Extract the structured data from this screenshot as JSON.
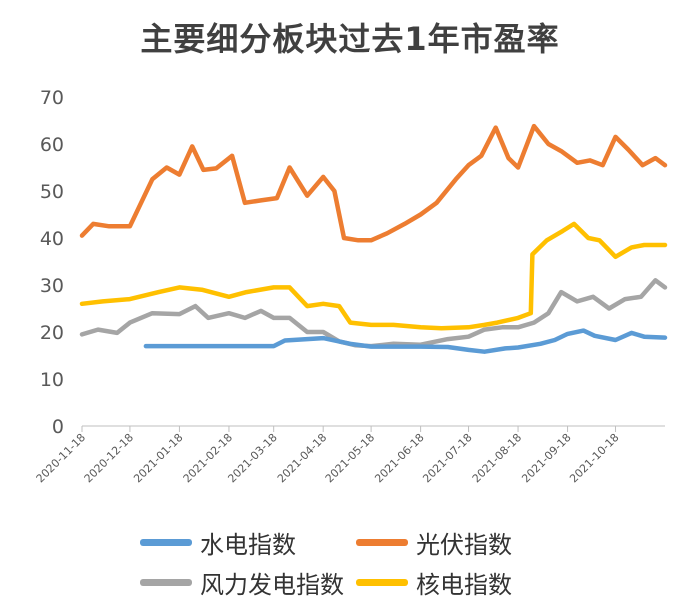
{
  "chart_data": {
    "type": "line",
    "title": "主要细分板块过去1年市盈率",
    "xlabel": "",
    "ylabel": "",
    "ylim": [
      0,
      70
    ],
    "yticks": [
      0,
      10,
      20,
      30,
      40,
      50,
      60,
      70
    ],
    "xticks": [
      "2020-11-18",
      "2020-12-18",
      "2021-01-18",
      "2021-02-18",
      "2021-03-18",
      "2021-04-18",
      "2021-05-18",
      "2021-06-18",
      "2021-07-18",
      "2021-08-18",
      "2021-09-18",
      "2021-10-18"
    ],
    "grid": false,
    "legend_position": "bottom",
    "series": [
      {
        "name": "水电指数",
        "color": "#5B9BD5",
        "x": [
          "2020-12-28",
          "2021-01-18",
          "2021-02-18",
          "2021-03-18",
          "2021-03-25",
          "2021-04-18",
          "2021-05-05",
          "2021-05-18",
          "2021-06-18",
          "2021-07-05",
          "2021-07-18",
          "2021-07-28",
          "2021-08-10",
          "2021-08-18",
          "2021-09-01",
          "2021-09-10",
          "2021-09-18",
          "2021-09-28",
          "2021-10-05",
          "2021-10-18",
          "2021-10-28",
          "2021-11-05",
          "2021-11-18"
        ],
        "values": [
          17,
          17,
          17,
          17,
          18.2,
          18.7,
          17.5,
          16.9,
          16.9,
          16.8,
          16.2,
          15.8,
          16.5,
          16.7,
          17.5,
          18.3,
          19.6,
          20.3,
          19.2,
          18.3,
          19.8,
          19.0,
          18.8
        ]
      },
      {
        "name": "光伏指数",
        "color": "#ED7D31",
        "x": [
          "2020-11-18",
          "2020-11-25",
          "2020-12-05",
          "2020-12-18",
          "2021-01-01",
          "2021-01-10",
          "2021-01-18",
          "2021-01-26",
          "2021-02-02",
          "2021-02-10",
          "2021-02-20",
          "2021-02-28",
          "2021-03-10",
          "2021-03-20",
          "2021-03-28",
          "2021-04-08",
          "2021-04-18",
          "2021-04-25",
          "2021-05-01",
          "2021-05-10",
          "2021-05-18",
          "2021-05-28",
          "2021-06-08",
          "2021-06-18",
          "2021-06-28",
          "2021-07-10",
          "2021-07-18",
          "2021-07-26",
          "2021-08-04",
          "2021-08-12",
          "2021-08-18",
          "2021-08-28",
          "2021-09-06",
          "2021-09-14",
          "2021-09-24",
          "2021-10-02",
          "2021-10-10",
          "2021-10-18",
          "2021-10-26",
          "2021-11-04",
          "2021-11-12",
          "2021-11-18"
        ],
        "values": [
          40.5,
          43,
          42.5,
          42.5,
          52.5,
          55,
          53.5,
          59.5,
          54.5,
          54.8,
          57.5,
          47.5,
          48,
          48.5,
          55,
          49,
          53,
          50,
          40,
          39.5,
          39.5,
          41,
          43,
          45,
          47.5,
          52.5,
          55.5,
          57.5,
          63.5,
          57,
          55,
          63.8,
          60,
          58.5,
          56,
          56.5,
          55.5,
          61.5,
          58.8,
          55.5,
          57,
          55.5
        ]
      },
      {
        "name": "风力发电指数",
        "color": "#A5A5A5",
        "x": [
          "2020-11-18",
          "2020-11-28",
          "2020-12-10",
          "2020-12-18",
          "2021-01-01",
          "2021-01-18",
          "2021-01-28",
          "2021-02-05",
          "2021-02-18",
          "2021-02-28",
          "2021-03-10",
          "2021-03-18",
          "2021-03-28",
          "2021-04-08",
          "2021-04-18",
          "2021-04-28",
          "2021-05-08",
          "2021-05-18",
          "2021-06-01",
          "2021-06-18",
          "2021-07-05",
          "2021-07-18",
          "2021-07-28",
          "2021-08-08",
          "2021-08-18",
          "2021-08-28",
          "2021-09-06",
          "2021-09-14",
          "2021-09-24",
          "2021-10-04",
          "2021-10-14",
          "2021-10-24",
          "2021-11-03",
          "2021-11-12",
          "2021-11-18"
        ],
        "values": [
          19.5,
          20.5,
          19.8,
          22,
          24,
          23.8,
          25.5,
          23,
          24,
          23,
          24.5,
          23,
          23,
          20,
          20,
          18,
          17.2,
          17,
          17.5,
          17.3,
          18.5,
          19,
          20.5,
          21,
          21,
          22,
          24,
          28.5,
          26.5,
          27.5,
          25,
          27,
          27.5,
          31,
          29.5
        ]
      },
      {
        "name": "核电指数",
        "color": "#FFC000",
        "x": [
          "2020-11-18",
          "2020-12-01",
          "2020-12-18",
          "2021-01-05",
          "2021-01-18",
          "2021-02-01",
          "2021-02-18",
          "2021-03-01",
          "2021-03-18",
          "2021-03-28",
          "2021-04-08",
          "2021-04-18",
          "2021-04-28",
          "2021-05-05",
          "2021-05-18",
          "2021-06-01",
          "2021-06-18",
          "2021-07-01",
          "2021-07-18",
          "2021-07-28",
          "2021-08-05",
          "2021-08-18",
          "2021-08-26",
          "2021-08-27",
          "2021-09-05",
          "2021-09-15",
          "2021-09-22",
          "2021-10-01",
          "2021-10-08",
          "2021-10-18",
          "2021-10-28",
          "2021-11-05",
          "2021-11-18"
        ],
        "values": [
          26,
          26.5,
          27,
          28.5,
          29.5,
          29,
          27.5,
          28.5,
          29.5,
          29.5,
          25.5,
          26,
          25.5,
          22,
          21.5,
          21.5,
          21,
          20.8,
          21,
          21.5,
          22,
          23,
          24,
          36.5,
          39.5,
          41.5,
          43,
          40,
          39.5,
          36,
          38,
          38.5,
          38.5
        ]
      }
    ]
  }
}
